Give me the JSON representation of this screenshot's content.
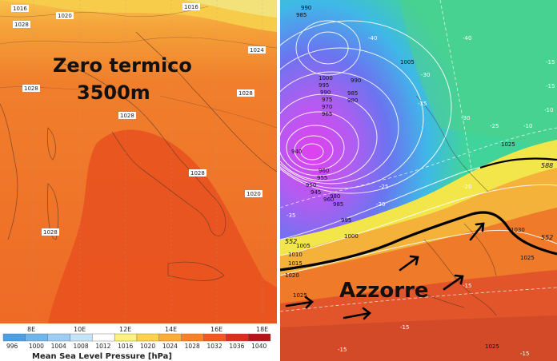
{
  "left_map": {
    "annotation_line1": "Zero termico",
    "annotation_line2": "3500m",
    "longitude_ticks": [
      "8E",
      "10E",
      "12E",
      "14E",
      "16E",
      "18E"
    ],
    "isobar_labels": [
      "1016",
      "1028",
      "1024",
      "1020",
      "1016",
      "1028",
      "1028",
      "1028",
      "1028",
      "1028",
      "1020"
    ],
    "colorbar": {
      "title": "Mean Sea Level Pressure [hPa]",
      "ticks": [
        "996",
        "1000",
        "1004",
        "1008",
        "1012",
        "1016",
        "1020",
        "1024",
        "1028",
        "1032",
        "1036",
        "1040"
      ],
      "colors": [
        "#4aa0e6",
        "#6fb6ee",
        "#9ccdf4",
        "#c6e4f8",
        "#ffffff",
        "#fff27a",
        "#ffd24a",
        "#ffac33",
        "#ff7f24",
        "#f15a1f",
        "#d9301c",
        "#b3161a"
      ]
    }
  },
  "right_map": {
    "annotation": "Azzorre",
    "isobar_labels": [
      "990",
      "985",
      "1000",
      "995",
      "990",
      "985",
      "980",
      "1005",
      "990",
      "975",
      "970",
      "965",
      "960",
      "955",
      "950",
      "945",
      "940",
      "960",
      "985",
      "980",
      "995",
      "1000",
      "1005",
      "1010",
      "1015",
      "1020",
      "1025",
      "1030",
      "1025",
      "1025",
      "1025"
    ],
    "geopotential_labels": [
      "552",
      "552",
      "588"
    ],
    "temperature_labels": [
      "-40",
      "-40",
      "-35",
      "-35",
      "-30",
      "-30",
      "-25",
      "-25",
      "-20",
      "-20",
      "-15",
      "-15",
      "-15",
      "-10",
      "-10",
      "-15",
      "-15",
      "-15"
    ]
  }
}
